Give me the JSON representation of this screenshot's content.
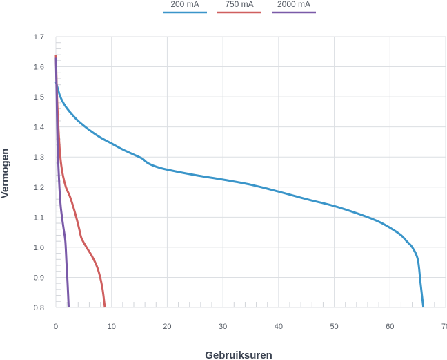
{
  "chart_data": {
    "type": "line",
    "title": "",
    "xlabel": "Gebruiksuren",
    "ylabel": "Vermogen",
    "xlim": [
      0,
      70
    ],
    "ylim": [
      0.8,
      1.7
    ],
    "xticks": [
      0,
      10,
      20,
      30,
      40,
      50,
      60,
      70
    ],
    "xtick_labels": [
      "0",
      "10",
      "20",
      "30",
      "40",
      "50",
      "60",
      "70"
    ],
    "yticks": [
      0.8,
      0.9,
      1.0,
      1.1,
      1.2,
      1.3,
      1.4,
      1.5,
      1.6,
      1.7
    ],
    "ytick_labels": [
      "0.8",
      "0.9",
      "1.0",
      "1.1",
      "1.2",
      "1.3",
      "1.4",
      "1.5",
      "1.6",
      "1.7"
    ],
    "grid": true,
    "legend_position": "top-center",
    "series": [
      {
        "name": "200 mA",
        "color": "#3a95c9",
        "x": [
          0.0,
          0.3,
          0.8,
          1.5,
          2.5,
          4.0,
          6.0,
          8.0,
          10.0,
          12.0,
          14.0,
          15.5,
          16.5,
          18.0,
          20.0,
          25.0,
          30.0,
          35.0,
          40.0,
          45.0,
          50.0,
          55.0,
          58.0,
          60.0,
          62.0,
          63.0,
          64.0,
          65.0,
          65.5,
          66.0
        ],
        "y": [
          1.55,
          1.53,
          1.5,
          1.475,
          1.45,
          1.42,
          1.39,
          1.365,
          1.345,
          1.325,
          1.308,
          1.295,
          1.28,
          1.268,
          1.258,
          1.24,
          1.225,
          1.208,
          1.185,
          1.16,
          1.137,
          1.107,
          1.085,
          1.065,
          1.04,
          1.02,
          1.0,
          0.96,
          0.88,
          0.8
        ]
      },
      {
        "name": "750 mA",
        "color": "#cf5f5f",
        "x": [
          0.0,
          0.2,
          0.5,
          0.8,
          1.2,
          1.8,
          2.5,
          3.2,
          3.8,
          4.2,
          4.6,
          5.5,
          6.5,
          7.5,
          8.3,
          8.8
        ],
        "y": [
          1.64,
          1.5,
          1.38,
          1.3,
          1.245,
          1.2,
          1.17,
          1.13,
          1.09,
          1.06,
          1.03,
          1.0,
          0.97,
          0.93,
          0.87,
          0.8
        ]
      },
      {
        "name": "2000 mA",
        "color": "#7a5aa8",
        "x": [
          0.0,
          0.15,
          0.3,
          0.5,
          0.8,
          1.1,
          1.4,
          1.7,
          1.9,
          2.1,
          2.3
        ],
        "y": [
          1.63,
          1.5,
          1.35,
          1.25,
          1.15,
          1.1,
          1.06,
          1.02,
          0.95,
          0.88,
          0.8
        ]
      }
    ]
  }
}
